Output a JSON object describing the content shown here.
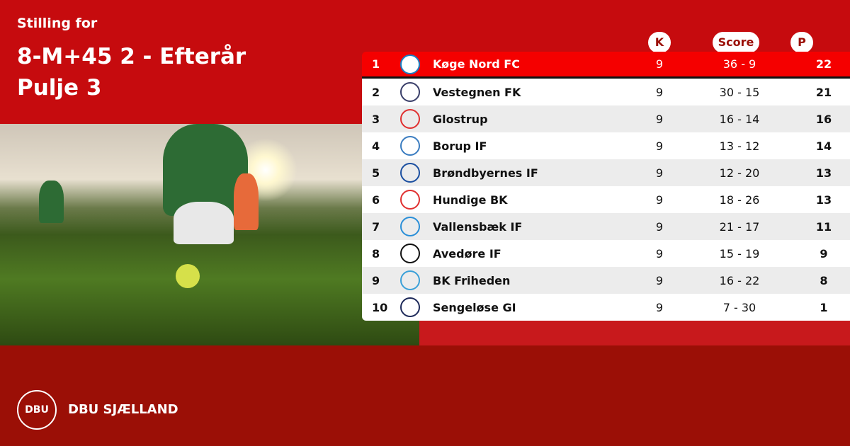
{
  "header": {
    "subtitle": "Stilling for",
    "title_line1": "8-M+45 2 - Efterår",
    "title_line2": "Pulje 3"
  },
  "columns": {
    "k": "K",
    "score": "Score",
    "p": "P"
  },
  "rows": [
    {
      "pos": "1",
      "team": "Køge Nord FC",
      "k": "9",
      "score": "36 - 9",
      "p": "22",
      "logo_color": "#1a7fc4"
    },
    {
      "pos": "2",
      "team": "Vestegnen FK",
      "k": "9",
      "score": "30 - 15",
      "p": "21",
      "logo_color": "#3a3f6a"
    },
    {
      "pos": "3",
      "team": "Glostrup",
      "k": "9",
      "score": "16 - 14",
      "p": "16",
      "logo_color": "#e03030"
    },
    {
      "pos": "4",
      "team": "Borup IF",
      "k": "9",
      "score": "13 - 12",
      "p": "14",
      "logo_color": "#3a7cc0"
    },
    {
      "pos": "5",
      "team": "Brøndbyernes IF",
      "k": "9",
      "score": "12 - 20",
      "p": "13",
      "logo_color": "#1b4fa0"
    },
    {
      "pos": "6",
      "team": "Hundige BK",
      "k": "9",
      "score": "18 - 26",
      "p": "13",
      "logo_color": "#e03030"
    },
    {
      "pos": "7",
      "team": "Vallensbæk IF",
      "k": "9",
      "score": "21 - 17",
      "p": "11",
      "logo_color": "#2a8fd8"
    },
    {
      "pos": "8",
      "team": "Avedøre IF",
      "k": "9",
      "score": "15 - 19",
      "p": "9",
      "logo_color": "#111111"
    },
    {
      "pos": "9",
      "team": "BK Friheden",
      "k": "9",
      "score": "16 - 22",
      "p": "8",
      "logo_color": "#3aa0d8"
    },
    {
      "pos": "10",
      "team": "Sengeløse GI",
      "k": "9",
      "score": "7 - 30",
      "p": "1",
      "logo_color": "#1e2a5a"
    }
  ],
  "brand": {
    "logo_text": "DBU",
    "name": "DBU SJÆLLAND"
  },
  "colors": {
    "primary_red": "#c60b0e",
    "dark_red": "#9b0f06",
    "highlight": "#f50000"
  }
}
